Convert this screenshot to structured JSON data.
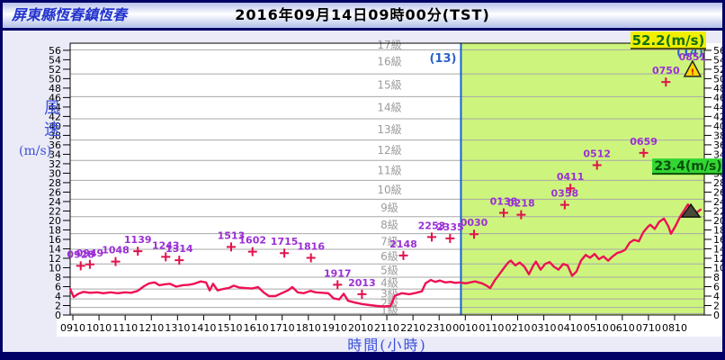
{
  "titlebar": {
    "station": "屏東縣恆春鎮恆春",
    "datetime": "2016年09月14日09時00分(TST)"
  },
  "chart_data": {
    "type": "line",
    "title": "2016年09月14日09時00分(TST)",
    "station": "屏東縣恆春鎮恆春",
    "y_axis_name": "風速",
    "y_axis_unit": "(m/s)",
    "xlabel": "時間(小時)",
    "ylim": [
      0,
      57.5
    ],
    "y_tick_min": 0,
    "y_tick_max": 56,
    "y_tick_step": 2,
    "x_ticks": [
      "0910",
      "1010",
      "1110",
      "1210",
      "1310",
      "1410",
      "1510",
      "1610",
      "1710",
      "1810",
      "1910",
      "2010",
      "2110",
      "2210",
      "2310",
      "0010",
      "0110",
      "0210",
      "0310",
      "0410",
      "0510",
      "0610",
      "0710",
      "0810"
    ],
    "day_boundary": {
      "hours_after_start": 14.8333,
      "left_day_label": "(13)",
      "right_day_label": "(14)"
    },
    "beaufort_scale": {
      "boundaries_ms": [
        0.3,
        1.6,
        3.4,
        5.5,
        8.0,
        10.8,
        13.9,
        17.2,
        20.8,
        24.5,
        28.5,
        32.7,
        37.0,
        41.5,
        46.2,
        51.0,
        56.1
      ],
      "labels": [
        "1級",
        "2級",
        "3級",
        "4級",
        "5級",
        "6級",
        "7級",
        "8級",
        "9級",
        "10級",
        "11級",
        "12級",
        "13級",
        "14級",
        "15級",
        "16級",
        "17級"
      ]
    },
    "series": [
      {
        "name": "mean-wind",
        "type": "line",
        "points_t_hours_value": [
          [
            -0.1,
            5.5
          ],
          [
            0.03,
            3.8
          ],
          [
            0.21,
            4.5
          ],
          [
            0.41,
            4.9
          ],
          [
            0.65,
            4.7
          ],
          [
            0.93,
            4.8
          ],
          [
            1.17,
            4.6
          ],
          [
            1.44,
            4.8
          ],
          [
            1.72,
            4.6
          ],
          [
            1.99,
            4.8
          ],
          [
            2.23,
            4.7
          ],
          [
            2.48,
            5.1
          ],
          [
            2.72,
            6.1
          ],
          [
            2.92,
            6.7
          ],
          [
            3.13,
            6.9
          ],
          [
            3.3,
            6.3
          ],
          [
            3.51,
            6.5
          ],
          [
            3.71,
            6.6
          ],
          [
            3.95,
            6.0
          ],
          [
            4.19,
            6.3
          ],
          [
            4.43,
            6.4
          ],
          [
            4.64,
            6.6
          ],
          [
            4.88,
            7.1
          ],
          [
            5.09,
            6.9
          ],
          [
            5.23,
            5.2
          ],
          [
            5.36,
            6.6
          ],
          [
            5.53,
            5.2
          ],
          [
            5.74,
            5.5
          ],
          [
            5.95,
            5.7
          ],
          [
            6.15,
            6.2
          ],
          [
            6.36,
            5.8
          ],
          [
            6.6,
            5.7
          ],
          [
            6.84,
            5.6
          ],
          [
            7.08,
            5.9
          ],
          [
            7.29,
            4.8
          ],
          [
            7.49,
            4.0
          ],
          [
            7.74,
            4.0
          ],
          [
            7.98,
            4.6
          ],
          [
            8.22,
            5.2
          ],
          [
            8.39,
            5.9
          ],
          [
            8.59,
            4.8
          ],
          [
            8.83,
            4.6
          ],
          [
            9.08,
            5.1
          ],
          [
            9.28,
            4.8
          ],
          [
            9.52,
            4.7
          ],
          [
            9.76,
            4.6
          ],
          [
            9.97,
            3.5
          ],
          [
            10.18,
            3.3
          ],
          [
            10.35,
            4.5
          ],
          [
            10.52,
            3.0
          ],
          [
            10.8,
            2.6
          ],
          [
            11.07,
            2.3
          ],
          [
            11.35,
            2.1
          ],
          [
            11.62,
            1.9
          ],
          [
            11.9,
            1.8
          ],
          [
            12.14,
            1.9
          ],
          [
            12.31,
            4.1
          ],
          [
            12.58,
            4.6
          ],
          [
            12.86,
            4.4
          ],
          [
            13.13,
            4.7
          ],
          [
            13.34,
            5.0
          ],
          [
            13.48,
            6.7
          ],
          [
            13.68,
            7.4
          ],
          [
            13.85,
            7.0
          ],
          [
            14.03,
            7.3
          ],
          [
            14.23,
            6.9
          ],
          [
            14.44,
            7.0
          ],
          [
            14.61,
            6.8
          ],
          [
            14.78,
            6.9
          ],
          [
            15.02,
            6.7
          ],
          [
            15.37,
            7.1
          ],
          [
            15.64,
            6.7
          ],
          [
            15.81,
            6.2
          ],
          [
            15.95,
            5.7
          ],
          [
            16.12,
            7.3
          ],
          [
            16.3,
            8.6
          ],
          [
            16.47,
            9.9
          ],
          [
            16.64,
            11.1
          ],
          [
            16.74,
            11.5
          ],
          [
            16.91,
            10.5
          ],
          [
            17.08,
            11.1
          ],
          [
            17.26,
            10.2
          ],
          [
            17.43,
            8.6
          ],
          [
            17.6,
            10.5
          ],
          [
            17.7,
            11.3
          ],
          [
            17.88,
            9.6
          ],
          [
            18.05,
            10.8
          ],
          [
            18.22,
            11.2
          ],
          [
            18.39,
            10.2
          ],
          [
            18.56,
            9.6
          ],
          [
            18.74,
            10.8
          ],
          [
            18.91,
            10.5
          ],
          [
            19.08,
            8.3
          ],
          [
            19.25,
            9.2
          ],
          [
            19.42,
            11.5
          ],
          [
            19.6,
            12.7
          ],
          [
            19.77,
            12.1
          ],
          [
            19.94,
            12.9
          ],
          [
            20.11,
            11.8
          ],
          [
            20.28,
            12.4
          ],
          [
            20.46,
            11.5
          ],
          [
            20.63,
            12.4
          ],
          [
            20.8,
            13.1
          ],
          [
            20.97,
            13.4
          ],
          [
            21.11,
            13.8
          ],
          [
            21.28,
            15.3
          ],
          [
            21.45,
            15.9
          ],
          [
            21.63,
            15.6
          ],
          [
            21.8,
            17.5
          ],
          [
            21.97,
            18.6
          ],
          [
            22.07,
            19.1
          ],
          [
            22.24,
            18.2
          ],
          [
            22.41,
            19.7
          ],
          [
            22.59,
            20.4
          ],
          [
            22.76,
            18.8
          ],
          [
            22.86,
            17.2
          ],
          [
            23.03,
            18.8
          ],
          [
            23.2,
            20.7
          ],
          [
            23.37,
            22.2
          ],
          [
            23.51,
            23.4
          ],
          [
            23.68,
            21.0
          ],
          [
            23.85,
            21.7
          ],
          [
            23.99,
            22.3
          ]
        ]
      },
      {
        "name": "gust",
        "type": "scatter",
        "points": [
          {
            "time": "0928",
            "value": 10.4
          },
          {
            "time": "0949",
            "value": 10.7
          },
          {
            "time": "1048",
            "value": 11.3
          },
          {
            "time": "1139",
            "value": 13.5
          },
          {
            "time": "1243",
            "value": 12.3
          },
          {
            "time": "1314",
            "value": 11.6
          },
          {
            "time": "1513",
            "value": 14.4
          },
          {
            "time": "1602",
            "value": 13.4
          },
          {
            "time": "1715",
            "value": 13.1
          },
          {
            "time": "1816",
            "value": 12.1
          },
          {
            "time": "1917",
            "value": 6.4
          },
          {
            "time": "2013",
            "value": 4.4
          },
          {
            "time": "2148",
            "value": 12.6
          },
          {
            "time": "2253",
            "value": 16.5
          },
          {
            "time": "2335",
            "value": 16.2
          },
          {
            "time": "0030",
            "value": 17.1
          },
          {
            "time": "0138",
            "value": 21.6
          },
          {
            "time": "0218",
            "value": 21.2
          },
          {
            "time": "0358",
            "value": 23.3
          },
          {
            "time": "0411",
            "value": 26.8
          },
          {
            "time": "0512",
            "value": 31.7
          },
          {
            "time": "0659",
            "value": 34.3
          },
          {
            "time": "0750",
            "value": 49.3
          },
          {
            "time": "0851",
            "value": 52.2,
            "marker": "warning"
          }
        ]
      }
    ],
    "annotations": {
      "max_gust": {
        "text": "52.2(m/s)",
        "time": "0851"
      },
      "max_mean": {
        "text": "23.4(m/s)",
        "value": 23.4
      }
    },
    "colors": {
      "mean_line": "#ee1154",
      "gust_marker": "#e0114b",
      "gust_label": "#9b2fd6",
      "green_region": "#cdf57d",
      "day_line": "#1565c8",
      "gridline": "#a8a8a8",
      "max_gust_box_bg": "#f0f000",
      "max_gust_box_text": "#157015",
      "max_mean_box_bg": "#33d633",
      "max_mean_box_text": "#0a4f0a",
      "warning_triangle": "#ffd700",
      "peak_triangle": "#4a4a3a"
    },
    "legend_position": "none",
    "grid": true
  }
}
